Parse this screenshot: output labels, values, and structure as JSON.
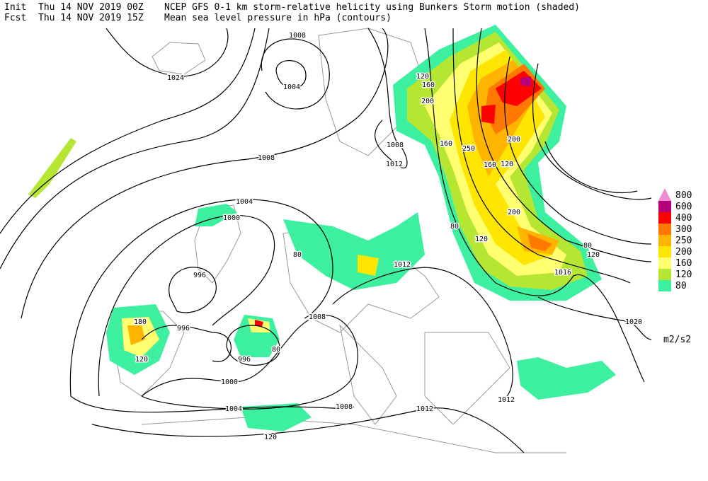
{
  "header": {
    "init_label": "Init",
    "init_time": "Thu 14 NOV 2019 00Z",
    "fcst_label": "Fcst",
    "fcst_time": "Thu 14 NOV 2019 15Z",
    "title_line1": "NCEP GFS 0-1 km storm-relative helicity using Bunkers Storm motion (shaded)",
    "title_line2": "Mean sea level pressure in hPa (contours)"
  },
  "legend": {
    "levels": [
      {
        "label": "800",
        "color": "#f08cd0"
      },
      {
        "label": "600",
        "color": "#b4007a"
      },
      {
        "label": "400",
        "color": "#ff0000"
      },
      {
        "label": "300",
        "color": "#ff7800"
      },
      {
        "label": "250",
        "color": "#ffb400"
      },
      {
        "label": "200",
        "color": "#ffe600"
      },
      {
        "label": "160",
        "color": "#ffff70"
      },
      {
        "label": "120",
        "color": "#b4e632"
      },
      {
        "label": "80",
        "color": "#3cf0a0"
      }
    ],
    "unit": "m2/s2"
  },
  "contour_labels": [
    "1024",
    "1008",
    "1004",
    "1008",
    "1004",
    "1000",
    "996",
    "996",
    "996",
    "1000",
    "1004",
    "1008",
    "1012",
    "1012",
    "1008",
    "1012",
    "1016",
    "1020",
    "1008",
    "1012"
  ],
  "shading_labels": [
    "120",
    "160",
    "200",
    "160",
    "200",
    "250",
    "160",
    "120",
    "200",
    "120",
    "180",
    "120",
    "80",
    "80",
    "120",
    "80",
    "80",
    "120"
  ]
}
